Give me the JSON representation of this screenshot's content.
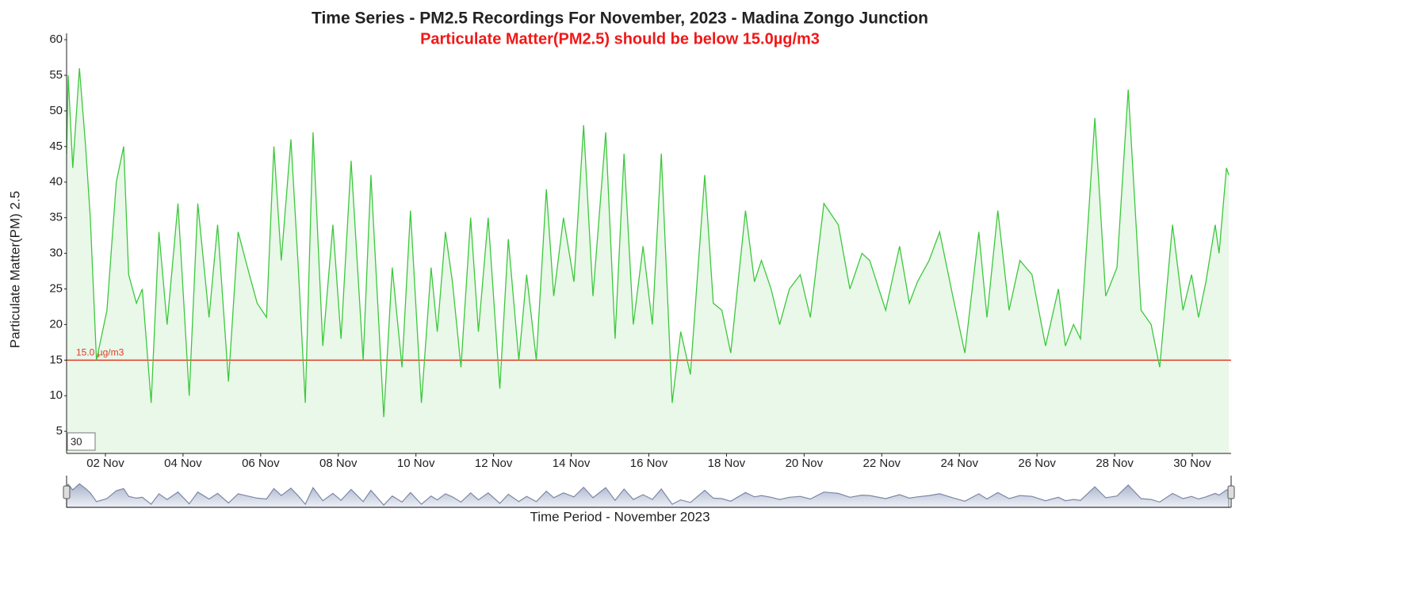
{
  "chart_data": {
    "type": "line",
    "title": "Time Series - PM2.5 Recordings For November, 2023 - Madina Zongo Junction",
    "subtitle": "Particulate Matter(PM2.5) should be below 15.0µg/m3",
    "x_label": "Time Period - November 2023",
    "y_label": "Particulate Matter(PM) 2.5",
    "roll_period": 30,
    "threshold": {
      "value": 15,
      "label": "15.0 µg/m3",
      "color": "#e03c28"
    },
    "xlim": [
      1,
      31
    ],
    "ylim": [
      1.9,
      60.9
    ],
    "xticks": [
      {
        "value": 2,
        "label": "02 Nov"
      },
      {
        "value": 4,
        "label": "04 Nov"
      },
      {
        "value": 6,
        "label": "06 Nov"
      },
      {
        "value": 8,
        "label": "08 Nov"
      },
      {
        "value": 10,
        "label": "10 Nov"
      },
      {
        "value": 12,
        "label": "12 Nov"
      },
      {
        "value": 14,
        "label": "14 Nov"
      },
      {
        "value": 16,
        "label": "16 Nov"
      },
      {
        "value": 18,
        "label": "18 Nov"
      },
      {
        "value": 20,
        "label": "20 Nov"
      },
      {
        "value": 22,
        "label": "22 Nov"
      },
      {
        "value": 24,
        "label": "24 Nov"
      },
      {
        "value": 26,
        "label": "26 Nov"
      },
      {
        "value": 28,
        "label": "28 Nov"
      },
      {
        "value": 30,
        "label": "30 Nov"
      }
    ],
    "yticks": [
      5,
      10,
      15,
      20,
      25,
      30,
      35,
      40,
      45,
      50,
      55,
      60
    ],
    "series": [
      {
        "name": "PM2.5",
        "color": "#3cc83c",
        "fill": "#e9f8e9",
        "x": [
          1.0,
          1.04,
          1.16,
          1.33,
          1.49,
          1.61,
          1.77,
          2.04,
          2.28,
          2.47,
          2.6,
          2.8,
          2.95,
          3.18,
          3.38,
          3.59,
          3.87,
          4.16,
          4.38,
          4.67,
          4.89,
          5.17,
          5.42,
          5.66,
          5.91,
          6.15,
          6.34,
          6.53,
          6.78,
          6.97,
          7.15,
          7.35,
          7.6,
          7.86,
          8.07,
          8.33,
          8.64,
          8.84,
          9.17,
          9.39,
          9.64,
          9.86,
          10.14,
          10.39,
          10.55,
          10.76,
          10.94,
          11.16,
          11.41,
          11.61,
          11.86,
          12.16,
          12.38,
          12.65,
          12.85,
          13.1,
          13.36,
          13.55,
          13.8,
          14.07,
          14.32,
          14.56,
          14.89,
          15.13,
          15.36,
          15.6,
          15.85,
          16.09,
          16.32,
          16.6,
          16.82,
          17.07,
          17.44,
          17.66,
          17.88,
          18.11,
          18.49,
          18.72,
          18.9,
          19.15,
          19.37,
          19.62,
          19.9,
          20.16,
          20.51,
          20.88,
          21.18,
          21.49,
          21.69,
          22.1,
          22.46,
          22.71,
          22.92,
          23.22,
          23.49,
          23.83,
          24.14,
          24.5,
          24.71,
          24.99,
          25.28,
          25.56,
          25.87,
          26.22,
          26.55,
          26.73,
          26.94,
          27.12,
          27.49,
          27.77,
          28.06,
          28.35,
          28.68,
          28.94,
          29.16,
          29.49,
          29.76,
          29.98,
          30.16,
          30.35,
          30.59,
          30.69,
          30.88,
          30.94
        ],
        "values": [
          44,
          55,
          42,
          56,
          45,
          35,
          15,
          22,
          40,
          45,
          27,
          23,
          25,
          9,
          33,
          20,
          37,
          10,
          37,
          21,
          34,
          12,
          33,
          28,
          23,
          21,
          45,
          29,
          46,
          28,
          9,
          47,
          17,
          34,
          18,
          43,
          15,
          41,
          7,
          28,
          14,
          36,
          9,
          28,
          19,
          33,
          26,
          14,
          35,
          19,
          35,
          11,
          32,
          15,
          27,
          15,
          39,
          24,
          35,
          26,
          48,
          24,
          47,
          18,
          44,
          20,
          31,
          20,
          44,
          9,
          19,
          13,
          41,
          23,
          22,
          16,
          36,
          26,
          29,
          25,
          20,
          25,
          27,
          21,
          37,
          34,
          25,
          30,
          29,
          22,
          31,
          23,
          26,
          29,
          33,
          24,
          16,
          33,
          21,
          36,
          22,
          29,
          27,
          17,
          25,
          17,
          20,
          18,
          49,
          24,
          28,
          53,
          22,
          20,
          14,
          34,
          22,
          27,
          21,
          26,
          34,
          30,
          42,
          41
        ]
      }
    ]
  }
}
